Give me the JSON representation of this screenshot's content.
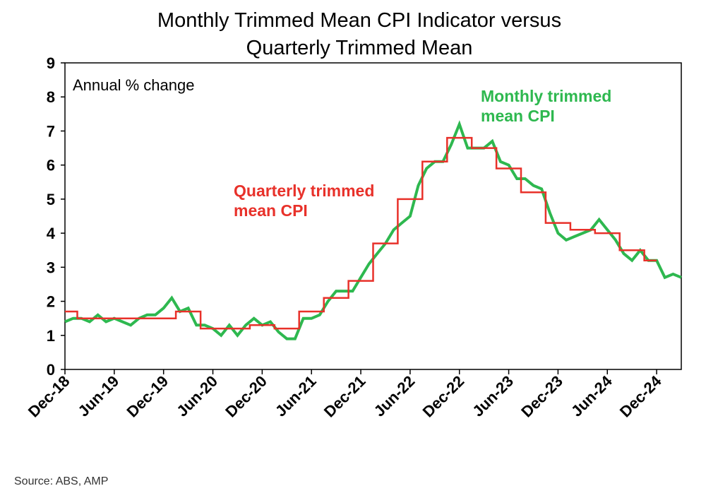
{
  "chart_data": {
    "type": "line",
    "title": "Monthly Trimmed Mean CPI Indicator versus",
    "subtitle": "Quarterly Trimmed Mean",
    "annotation": "Annual % change",
    "xlabel": "",
    "ylabel": "",
    "ylim": [
      0,
      9
    ],
    "yticks": [
      "0",
      "1",
      "2",
      "3",
      "4",
      "5",
      "6",
      "7",
      "8",
      "9"
    ],
    "xticks": [
      "Dec-18",
      "Jun-19",
      "Dec-19",
      "Jun-20",
      "Dec-20",
      "Jun-21",
      "Dec-21",
      "Jun-22",
      "Dec-22",
      "Jun-23",
      "Dec-23",
      "Jun-24",
      "Dec-24"
    ],
    "x_start": "Dec-18",
    "x_end": "Mar-25",
    "grid": false,
    "series": [
      {
        "name": "Monthly trimmed mean CPI",
        "label_lines": [
          "Monthly trimmed",
          "mean CPI"
        ],
        "color": "#2eb84f",
        "style": "line",
        "dates": [
          "2018-12",
          "2019-01",
          "2019-02",
          "2019-03",
          "2019-04",
          "2019-05",
          "2019-06",
          "2019-07",
          "2019-08",
          "2019-09",
          "2019-10",
          "2019-11",
          "2019-12",
          "2020-01",
          "2020-02",
          "2020-03",
          "2020-04",
          "2020-05",
          "2020-06",
          "2020-07",
          "2020-08",
          "2020-09",
          "2020-10",
          "2020-11",
          "2020-12",
          "2021-01",
          "2021-02",
          "2021-03",
          "2021-04",
          "2021-05",
          "2021-06",
          "2021-07",
          "2021-08",
          "2021-09",
          "2021-10",
          "2021-11",
          "2021-12",
          "2022-01",
          "2022-02",
          "2022-03",
          "2022-04",
          "2022-05",
          "2022-06",
          "2022-07",
          "2022-08",
          "2022-09",
          "2022-10",
          "2022-11",
          "2022-12",
          "2023-01",
          "2023-02",
          "2023-03",
          "2023-04",
          "2023-05",
          "2023-06",
          "2023-07",
          "2023-08",
          "2023-09",
          "2023-10",
          "2023-11",
          "2023-12",
          "2024-01",
          "2024-02",
          "2024-03",
          "2024-04",
          "2024-05",
          "2024-06",
          "2024-07",
          "2024-08",
          "2024-09",
          "2024-10",
          "2024-11",
          "2024-12",
          "2025-01",
          "2025-02",
          "2025-03"
        ],
        "values": [
          1.4,
          1.5,
          1.5,
          1.4,
          1.6,
          1.4,
          1.5,
          1.4,
          1.3,
          1.5,
          1.6,
          1.6,
          1.8,
          2.1,
          1.7,
          1.8,
          1.3,
          1.3,
          1.2,
          1.0,
          1.3,
          1.0,
          1.3,
          1.5,
          1.3,
          1.4,
          1.1,
          0.9,
          0.9,
          1.5,
          1.5,
          1.6,
          2.0,
          2.3,
          2.3,
          2.3,
          2.7,
          3.1,
          3.4,
          3.7,
          4.1,
          4.3,
          4.5,
          5.4,
          5.9,
          6.1,
          6.1,
          6.6,
          7.2,
          6.5,
          6.5,
          6.5,
          6.7,
          6.1,
          6.0,
          5.6,
          5.6,
          5.4,
          5.3,
          4.6,
          4.0,
          3.8,
          3.9,
          4.0,
          4.1,
          4.4,
          4.1,
          3.8,
          3.4,
          3.2,
          3.5,
          3.2,
          3.2,
          2.7,
          2.8,
          2.7
        ]
      },
      {
        "name": "Quarterly trimmed mean CPI",
        "label_lines": [
          "Quarterly trimmed",
          "mean CPI"
        ],
        "color": "#e8312a",
        "style": "step",
        "dates": [
          "2018-12",
          "2019-03",
          "2019-06",
          "2019-09",
          "2019-12",
          "2020-03",
          "2020-06",
          "2020-09",
          "2020-12",
          "2021-03",
          "2021-06",
          "2021-09",
          "2021-12",
          "2022-03",
          "2022-06",
          "2022-09",
          "2022-12",
          "2023-03",
          "2023-06",
          "2023-09",
          "2023-12",
          "2024-03",
          "2024-06",
          "2024-09",
          "2024-12"
        ],
        "values": [
          1.7,
          1.5,
          1.5,
          1.5,
          1.5,
          1.7,
          1.2,
          1.2,
          1.3,
          1.2,
          1.7,
          2.1,
          2.6,
          3.7,
          5.0,
          6.1,
          6.8,
          6.5,
          5.9,
          5.2,
          4.3,
          4.1,
          4.0,
          3.5,
          3.2
        ]
      }
    ]
  },
  "source_text": "Source: ABS, AMP"
}
